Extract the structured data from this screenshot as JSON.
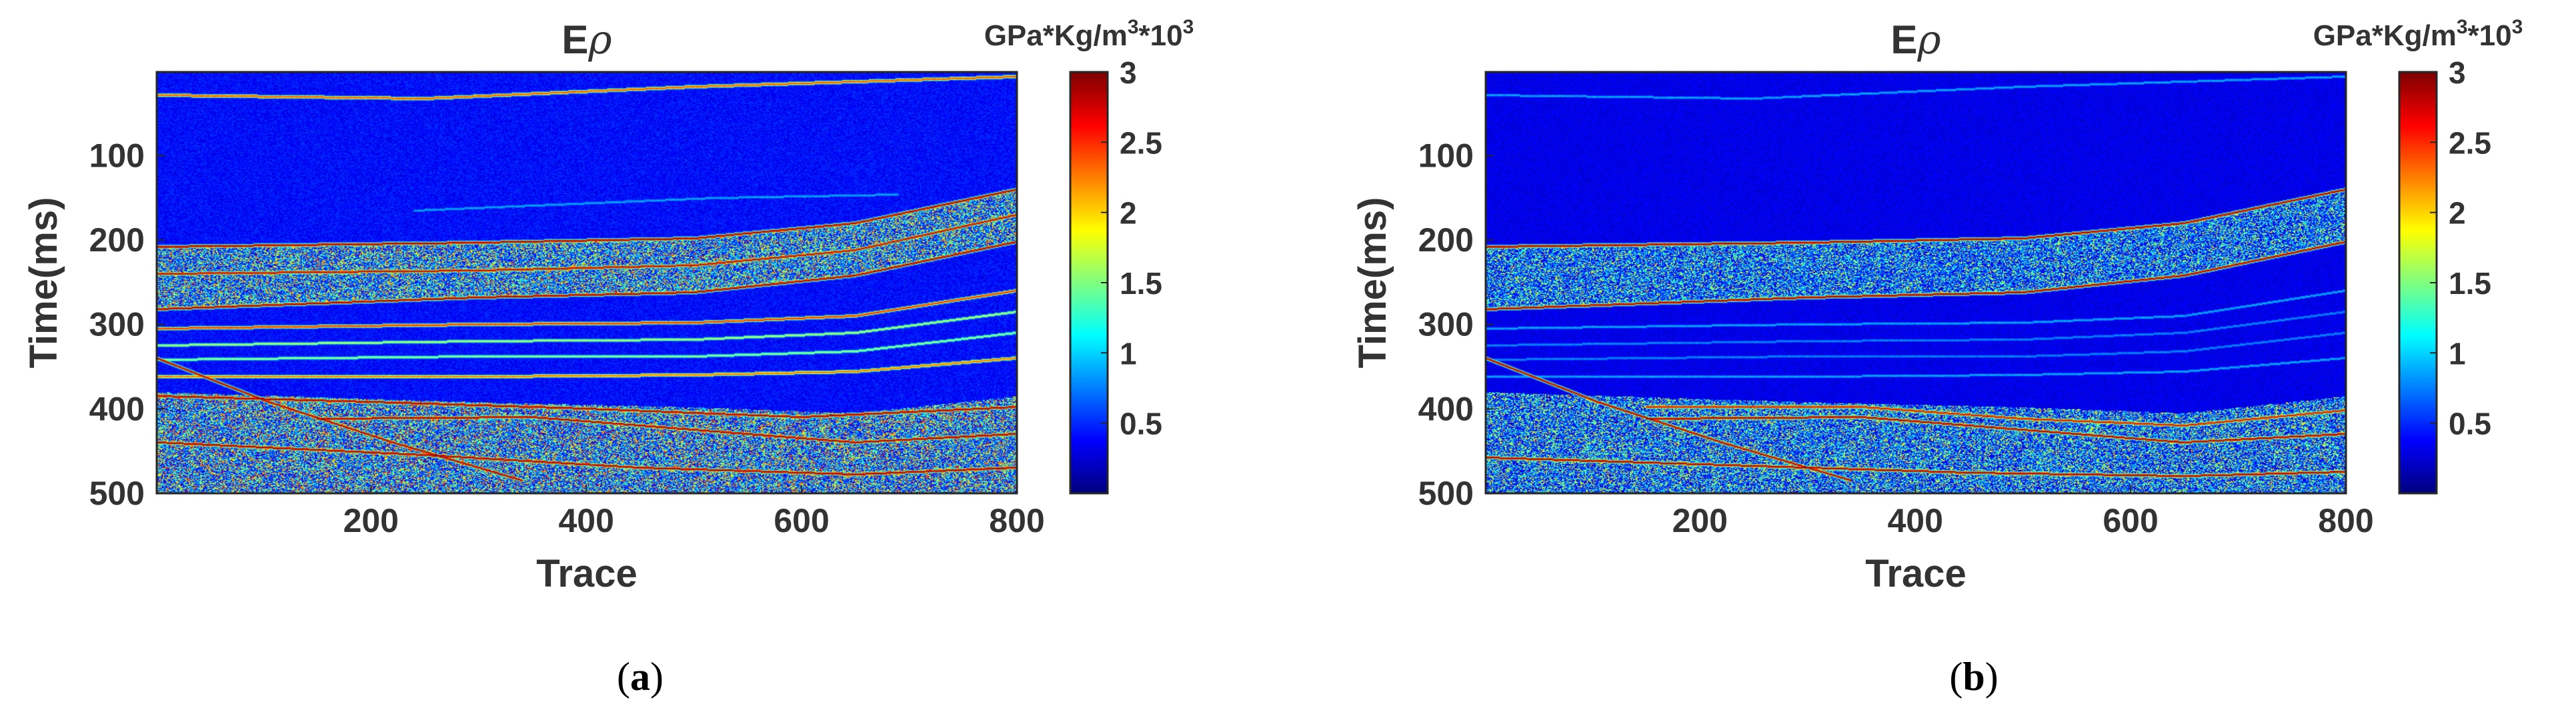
{
  "chart_data": [
    {
      "type": "heatmap",
      "panel_label": {
        "open": "(",
        "letter": "a",
        "close": ")"
      },
      "title": {
        "main": "E",
        "symbol": "ρ"
      },
      "xlabel": "Trace",
      "ylabel": "Time(ms)",
      "xlim": [
        1,
        800
      ],
      "ylim": [
        1,
        500
      ],
      "y_reversed": true,
      "x_ticks": [
        200,
        400,
        600,
        800
      ],
      "y_ticks": [
        100,
        200,
        300,
        400,
        500
      ],
      "colormap": "jet",
      "colorbar": {
        "label_prefix": "GPa*Kg/m",
        "label_sup1": "3",
        "label_mid": "*10",
        "label_sup2": "3",
        "range": [
          0,
          3
        ],
        "ticks": [
          0.5,
          1,
          1.5,
          2,
          2.5,
          3
        ],
        "tick_labels": [
          "0.5",
          "1",
          "1.5",
          "2",
          "2.5",
          "3"
        ]
      },
      "background_level": 0.25,
      "noise_amplitude": 0.5,
      "horizons": [
        {
          "name": "top horizon",
          "level": 2.5,
          "points": [
            [
              1,
              28
            ],
            [
              250,
              32
            ],
            [
              500,
              18
            ],
            [
              800,
              6
            ]
          ]
        },
        {
          "name": "lens top",
          "level": 0.9,
          "points": [
            [
              240,
              165
            ],
            [
              520,
              150
            ],
            [
              690,
              146
            ]
          ]
        },
        {
          "name": "upper bright top",
          "level": 3.0,
          "points": [
            [
              1,
              208
            ],
            [
              300,
              203
            ],
            [
              500,
              198
            ],
            [
              650,
              180
            ],
            [
              800,
              140
            ]
          ]
        },
        {
          "name": "upper bright mid",
          "level": 2.9,
          "points": [
            [
              1,
              240
            ],
            [
              300,
              236
            ],
            [
              500,
              230
            ],
            [
              650,
              212
            ],
            [
              800,
              170
            ]
          ]
        },
        {
          "name": "upper bright base",
          "level": 3.0,
          "points": [
            [
              1,
              282
            ],
            [
              300,
              268
            ],
            [
              500,
              262
            ],
            [
              650,
              242
            ],
            [
              800,
              202
            ]
          ]
        },
        {
          "name": "middle 1",
          "level": 2.6,
          "points": [
            [
              1,
              305
            ],
            [
              300,
              300
            ],
            [
              500,
              298
            ],
            [
              650,
              290
            ],
            [
              800,
              260
            ]
          ]
        },
        {
          "name": "middle 2",
          "level": 1.7,
          "points": [
            [
              1,
              325
            ],
            [
              300,
              320
            ],
            [
              500,
              318
            ],
            [
              650,
              310
            ],
            [
              800,
              285
            ]
          ]
        },
        {
          "name": "middle 3",
          "level": 1.6,
          "points": [
            [
              1,
              342
            ],
            [
              300,
              338
            ],
            [
              500,
              338
            ],
            [
              650,
              332
            ],
            [
              800,
              310
            ]
          ]
        },
        {
          "name": "middle 4",
          "level": 2.4,
          "points": [
            [
              1,
              362
            ],
            [
              300,
              362
            ],
            [
              500,
              360
            ],
            [
              650,
              356
            ],
            [
              800,
              340
            ]
          ]
        },
        {
          "name": "lower top",
          "level": 3.0,
          "points": [
            [
              1,
              385
            ],
            [
              200,
              392
            ],
            [
              400,
              400
            ],
            [
              600,
              410
            ],
            [
              800,
              398
            ]
          ]
        },
        {
          "name": "lower mid",
          "level": 3.0,
          "points": [
            [
              150,
              412
            ],
            [
              350,
              410
            ],
            [
              500,
              425
            ],
            [
              650,
              440
            ],
            [
              800,
              430
            ]
          ]
        },
        {
          "name": "lower base",
          "level": 3.0,
          "points": [
            [
              1,
              440
            ],
            [
              250,
              455
            ],
            [
              450,
              470
            ],
            [
              650,
              478
            ],
            [
              800,
              470
            ]
          ]
        },
        {
          "name": "dipping reflector",
          "level": 3.0,
          "points": [
            [
              1,
              340
            ],
            [
              100,
              390
            ],
            [
              220,
              440
            ],
            [
              340,
              485
            ]
          ]
        }
      ],
      "noisy_zones": [
        {
          "name": "upper layer",
          "top": [
            [
              1,
              208
            ],
            [
              300,
              203
            ],
            [
              500,
              198
            ],
            [
              650,
              180
            ],
            [
              800,
              140
            ]
          ],
          "base": [
            [
              1,
              282
            ],
            [
              300,
              268
            ],
            [
              500,
              262
            ],
            [
              650,
              242
            ],
            [
              800,
              202
            ]
          ],
          "level": 1.4
        },
        {
          "name": "lower layer",
          "top": [
            [
              1,
              380
            ],
            [
              300,
              392
            ],
            [
              500,
              398
            ],
            [
              650,
              405
            ],
            [
              800,
              385
            ]
          ],
          "base": [
            [
              1,
              500
            ],
            [
              800,
              500
            ]
          ],
          "level": 1.5
        }
      ]
    },
    {
      "type": "heatmap",
      "panel_label": {
        "open": "(",
        "letter": "b",
        "close": ")"
      },
      "title": {
        "main": "E",
        "symbol": "ρ"
      },
      "xlabel": "Trace",
      "ylabel": "Time(ms)",
      "xlim": [
        1,
        800
      ],
      "ylim": [
        1,
        500
      ],
      "y_reversed": true,
      "x_ticks": [
        200,
        400,
        600,
        800
      ],
      "y_ticks": [
        100,
        200,
        300,
        400,
        500
      ],
      "colormap": "jet",
      "colorbar": {
        "label_prefix": "GPa*Kg/m",
        "label_sup1": "3",
        "label_mid": "*10",
        "label_sup2": "3",
        "range": [
          0,
          3
        ],
        "ticks": [
          0.5,
          1,
          1.5,
          2,
          2.5,
          3
        ],
        "tick_labels": [
          "0.5",
          "1",
          "1.5",
          "2",
          "2.5",
          "3"
        ]
      },
      "background_level": 0.2,
      "noise_amplitude": 0.35,
      "horizons": [
        {
          "name": "top horizon",
          "level": 0.9,
          "points": [
            [
              1,
              28
            ],
            [
              250,
              32
            ],
            [
              500,
              18
            ],
            [
              800,
              6
            ]
          ]
        },
        {
          "name": "upper bright top",
          "level": 3.0,
          "points": [
            [
              1,
              208
            ],
            [
              300,
              203
            ],
            [
              500,
              198
            ],
            [
              650,
              180
            ],
            [
              800,
              140
            ]
          ]
        },
        {
          "name": "upper bright base",
          "level": 3.0,
          "points": [
            [
              1,
              282
            ],
            [
              300,
              268
            ],
            [
              500,
              262
            ],
            [
              650,
              242
            ],
            [
              800,
              202
            ]
          ]
        },
        {
          "name": "middle 1",
          "level": 0.9,
          "points": [
            [
              1,
              305
            ],
            [
              300,
              300
            ],
            [
              500,
              298
            ],
            [
              650,
              290
            ],
            [
              800,
              260
            ]
          ]
        },
        {
          "name": "middle 2",
          "level": 0.8,
          "points": [
            [
              1,
              325
            ],
            [
              300,
              320
            ],
            [
              500,
              318
            ],
            [
              650,
              310
            ],
            [
              800,
              285
            ]
          ]
        },
        {
          "name": "middle 3",
          "level": 0.8,
          "points": [
            [
              1,
              342
            ],
            [
              300,
              338
            ],
            [
              500,
              338
            ],
            [
              650,
              332
            ],
            [
              800,
              310
            ]
          ]
        },
        {
          "name": "middle 4",
          "level": 0.9,
          "points": [
            [
              1,
              362
            ],
            [
              300,
              362
            ],
            [
              500,
              360
            ],
            [
              650,
              356
            ],
            [
              800,
              340
            ]
          ]
        },
        {
          "name": "lower top",
          "level": 2.8,
          "points": [
            [
              150,
              398
            ],
            [
              350,
              398
            ],
            [
              500,
              412
            ],
            [
              650,
              420
            ],
            [
              800,
              402
            ]
          ]
        },
        {
          "name": "lower mid",
          "level": 3.0,
          "points": [
            [
              150,
              412
            ],
            [
              350,
              410
            ],
            [
              500,
              425
            ],
            [
              650,
              440
            ],
            [
              800,
              430
            ]
          ]
        },
        {
          "name": "lower base",
          "level": 3.0,
          "points": [
            [
              1,
              458
            ],
            [
              250,
              468
            ],
            [
              450,
              476
            ],
            [
              650,
              480
            ],
            [
              800,
              475
            ]
          ]
        },
        {
          "name": "dipping reflector",
          "level": 3.0,
          "points": [
            [
              1,
              340
            ],
            [
              100,
              390
            ],
            [
              220,
              440
            ],
            [
              340,
              485
            ]
          ]
        }
      ],
      "noisy_zones": [
        {
          "name": "upper layer",
          "top": [
            [
              1,
              208
            ],
            [
              300,
              203
            ],
            [
              500,
              198
            ],
            [
              650,
              180
            ],
            [
              800,
              140
            ]
          ],
          "base": [
            [
              1,
              282
            ],
            [
              300,
              268
            ],
            [
              500,
              262
            ],
            [
              650,
              242
            ],
            [
              800,
              202
            ]
          ],
          "level": 1.1
        },
        {
          "name": "lower layer",
          "top": [
            [
              1,
              380
            ],
            [
              300,
              392
            ],
            [
              500,
              398
            ],
            [
              650,
              405
            ],
            [
              800,
              385
            ]
          ],
          "base": [
            [
              1,
              500
            ],
            [
              800,
              500
            ]
          ],
          "level": 1.2
        }
      ]
    }
  ]
}
